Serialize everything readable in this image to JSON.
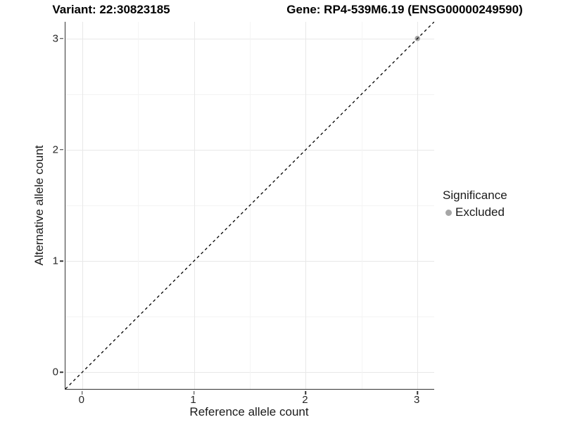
{
  "chart_data": {
    "type": "scatter",
    "title_left": "Variant: 22:30823185",
    "title_right": "Gene: RP4-539M6.19 (ENSG00000249590)",
    "xlabel": "Reference allele count",
    "ylabel": "Alternative allele count",
    "xlim": [
      -0.15,
      3.15
    ],
    "ylim": [
      -0.15,
      3.15
    ],
    "x_ticks": [
      0,
      1,
      2,
      3
    ],
    "y_ticks": [
      0,
      1,
      2,
      3
    ],
    "grid": "major and minor light-gray gridlines on white panel",
    "legend": {
      "position": "right-center",
      "title": "Significance",
      "entries": [
        {
          "label": "Excluded",
          "color": "#a6a6a6"
        }
      ]
    },
    "series": [
      {
        "name": "Excluded",
        "color": "#a6a6a6",
        "points": [
          {
            "x": 3,
            "y": 3
          }
        ]
      }
    ],
    "reference_line": {
      "type": "identity",
      "equation": "y = x",
      "style": "dashed",
      "color": "#000000"
    }
  },
  "colors": {
    "background": "#ffffff",
    "axis_line": "#333333",
    "grid_major": "#e8e8e8",
    "grid_minor": "#f4f4f4",
    "tick_text": "#262626",
    "excluded_gray": "#a6a6a6"
  }
}
